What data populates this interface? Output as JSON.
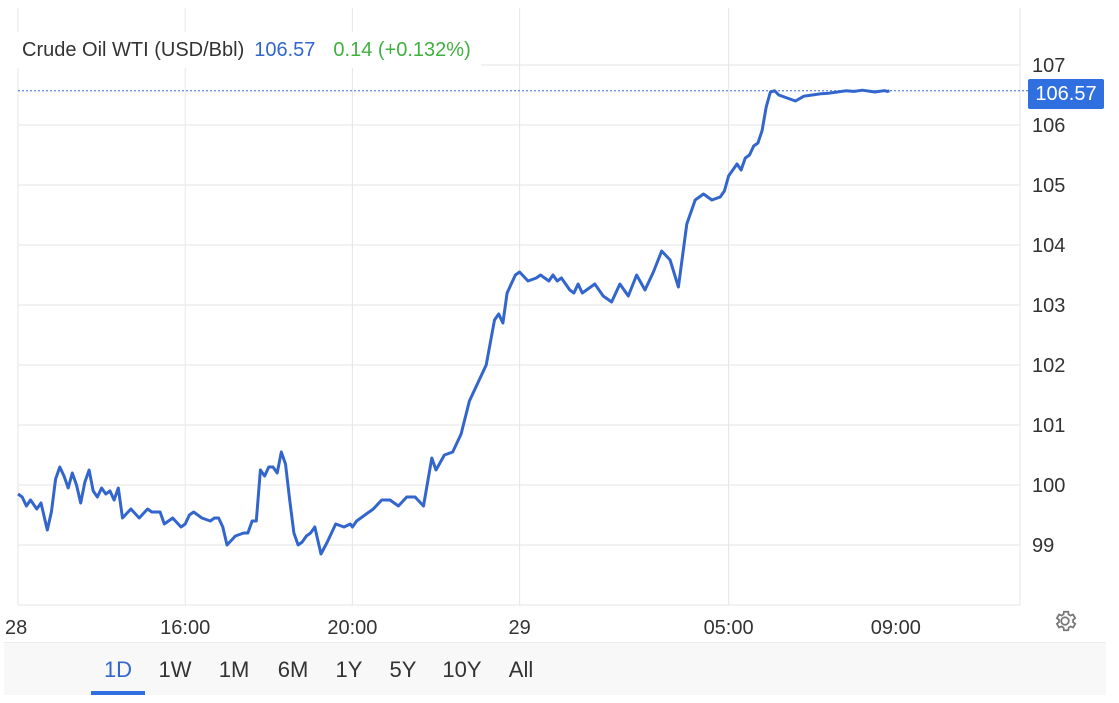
{
  "legend": {
    "name": "Crude Oil WTI (USD/Bbl)",
    "value": "106.57",
    "change": "0.14 (+0.132%)"
  },
  "price_tag": "106.57",
  "range_buttons": [
    {
      "label": "1D",
      "active": true
    },
    {
      "label": "1W",
      "active": false
    },
    {
      "label": "1M",
      "active": false
    },
    {
      "label": "6M",
      "active": false
    },
    {
      "label": "1Y",
      "active": false
    },
    {
      "label": "5Y",
      "active": false
    },
    {
      "label": "10Y",
      "active": false
    },
    {
      "label": "All",
      "active": false
    }
  ],
  "icons": {
    "settings": "gear-icon"
  },
  "colors": {
    "line": "#3366cc",
    "price_tag": "#2f6fe0",
    "change": "#3fb13f",
    "grid": "#e6e6e6"
  },
  "chart_data": {
    "type": "line",
    "title": "Crude Oil WTI (USD/Bbl)",
    "ylim": [
      98,
      107
    ],
    "y_ticks": [
      "99",
      "100",
      "101",
      "102",
      "103",
      "104",
      "105",
      "106",
      "107"
    ],
    "x_ticks": [
      "28",
      "16:00",
      "20:00",
      "29",
      "05:00",
      "09:00"
    ],
    "x_tick_hours": [
      12,
      16,
      20,
      24,
      29,
      33
    ],
    "xlim": [
      12,
      33.9
    ],
    "last_value": 106.57,
    "grid": true,
    "series": [
      {
        "name": "Crude Oil WTI (USD/Bbl)",
        "x": [
          12.0,
          12.1,
          12.2,
          12.3,
          12.45,
          12.55,
          12.7,
          12.8,
          12.9,
          13.0,
          13.1,
          13.2,
          13.3,
          13.4,
          13.5,
          13.6,
          13.7,
          13.8,
          13.9,
          14.0,
          14.1,
          14.2,
          14.3,
          14.4,
          14.5,
          14.7,
          14.9,
          15.1,
          15.2,
          15.4,
          15.5,
          15.7,
          15.9,
          16.0,
          16.1,
          16.2,
          16.4,
          16.6,
          16.7,
          16.8,
          16.9,
          17.0,
          17.2,
          17.4,
          17.5,
          17.6,
          17.7,
          17.8,
          17.9,
          18.0,
          18.1,
          18.2,
          18.3,
          18.4,
          18.5,
          18.6,
          18.7,
          18.8,
          18.9,
          19.0,
          19.1,
          19.25,
          19.4,
          19.6,
          19.8,
          19.95,
          20.0,
          20.1,
          20.2,
          20.3,
          20.5,
          20.7,
          20.9,
          21.1,
          21.3,
          21.5,
          21.7,
          21.9,
          22.0,
          22.2,
          22.4,
          22.6,
          22.8,
          23.0,
          23.2,
          23.4,
          23.5,
          23.6,
          23.7,
          23.8,
          23.9,
          24.0,
          24.2,
          24.4,
          24.5,
          24.7,
          24.8,
          24.9,
          25.0,
          25.1,
          25.2,
          25.3,
          25.4,
          25.5,
          25.6,
          25.7,
          25.8,
          26.0,
          26.2,
          26.4,
          26.6,
          26.8,
          27.0,
          27.2,
          27.4,
          27.6,
          27.8,
          28.0,
          28.2,
          28.4,
          28.6,
          28.8,
          28.9,
          29.0,
          29.1,
          29.2,
          29.3,
          29.4,
          29.5,
          29.6,
          29.7,
          29.8,
          29.9,
          30.0,
          30.1,
          30.2,
          30.4,
          30.6,
          30.8,
          31.0,
          31.2,
          31.4,
          31.6,
          31.8,
          32.0,
          32.1,
          32.2,
          32.3,
          32.4,
          32.5,
          32.6,
          32.7,
          32.75,
          32.8,
          32.85
        ],
        "values": [
          99.85,
          99.8,
          99.65,
          99.75,
          99.6,
          99.7,
          99.25,
          99.55,
          100.1,
          100.3,
          100.15,
          99.95,
          100.2,
          100.0,
          99.7,
          100.05,
          100.25,
          99.9,
          99.8,
          99.95,
          99.85,
          99.9,
          99.75,
          99.95,
          99.45,
          99.6,
          99.45,
          99.6,
          99.55,
          99.55,
          99.35,
          99.45,
          99.3,
          99.35,
          99.5,
          99.55,
          99.45,
          99.4,
          99.45,
          99.45,
          99.3,
          99.0,
          99.15,
          99.2,
          99.2,
          99.4,
          99.4,
          100.25,
          100.15,
          100.3,
          100.3,
          100.2,
          100.55,
          100.35,
          99.75,
          99.2,
          99.0,
          99.05,
          99.15,
          99.2,
          99.3,
          98.85,
          99.05,
          99.35,
          99.3,
          99.35,
          99.3,
          99.4,
          99.45,
          99.5,
          99.6,
          99.75,
          99.75,
          99.65,
          99.8,
          99.8,
          99.65,
          100.45,
          100.25,
          100.5,
          100.55,
          100.85,
          101.4,
          101.7,
          102.0,
          102.75,
          102.85,
          102.7,
          103.2,
          103.35,
          103.5,
          103.55,
          103.4,
          103.45,
          103.5,
          103.4,
          103.5,
          103.4,
          103.45,
          103.35,
          103.25,
          103.2,
          103.35,
          103.2,
          103.25,
          103.3,
          103.35,
          103.15,
          103.05,
          103.35,
          103.15,
          103.5,
          103.25,
          103.55,
          103.9,
          103.75,
          103.3,
          104.35,
          104.75,
          104.85,
          104.75,
          104.8,
          104.9,
          105.15,
          105.25,
          105.35,
          105.25,
          105.45,
          105.5,
          105.65,
          105.7,
          105.9,
          106.3,
          106.55,
          106.57,
          106.5,
          106.45,
          106.4,
          106.48,
          106.5,
          106.52,
          106.53,
          106.55,
          106.57,
          106.56,
          106.57,
          106.58,
          106.57,
          106.56,
          106.55,
          106.56,
          106.57,
          106.57,
          106.56,
          106.57
        ]
      }
    ]
  }
}
